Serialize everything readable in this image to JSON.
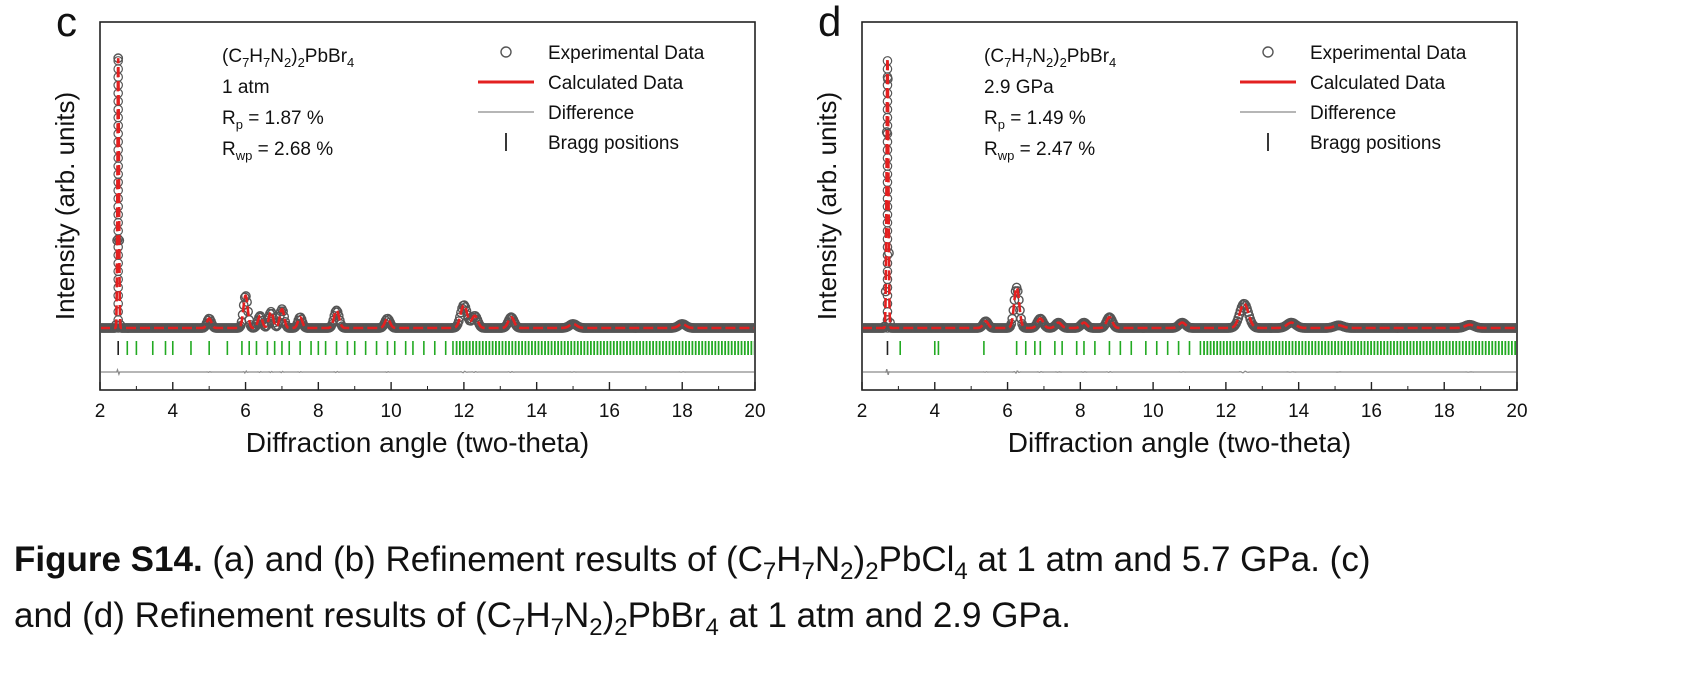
{
  "chart_data": [
    {
      "type": "scatter",
      "panel_label": "c",
      "xlabel": "Diffraction angle (two-theta)",
      "ylabel": "Intensity (arb. units)",
      "xlim": [
        2,
        20
      ],
      "xticks": [
        2,
        4,
        6,
        8,
        10,
        12,
        14,
        16,
        18,
        20
      ],
      "xtick_labels": [
        "2",
        "4",
        "6",
        "8",
        "10",
        "12",
        "14",
        "16",
        "18",
        "20"
      ],
      "info": {
        "compound_main": "(C",
        "compound_sub1": "7",
        "compound_mid1": "H",
        "compound_sub2": "7",
        "compound_mid2": "N",
        "compound_sub3": "2",
        "compound_mid3": ")",
        "compound_sub4": "2",
        "compound_mid4": "PbBr",
        "compound_sub5": "4",
        "pressure": "1 atm",
        "rp_main": "R",
        "rp_sub": "p",
        "rp_value": " = 1.87 %",
        "rwp_main": "R",
        "rwp_sub": "wp",
        "rwp_value": " = 2.68 %"
      },
      "legend": {
        "position": "top-right",
        "entries": [
          "Experimental Data",
          "Calculated Data",
          "Difference",
          "Bragg positions"
        ]
      },
      "colors": {
        "experimental": "#555555",
        "calculated": "#e32020",
        "difference": "#8a8a8a",
        "bragg": "#22aa22"
      },
      "baseline": 0.06,
      "peaks": [
        {
          "x": 2.5,
          "height": 1.0,
          "width": 0.02
        },
        {
          "x": 5.0,
          "height": 0.035,
          "width": 0.06
        },
        {
          "x": 6.0,
          "height": 0.12,
          "width": 0.06
        },
        {
          "x": 6.4,
          "height": 0.045,
          "width": 0.06
        },
        {
          "x": 6.7,
          "height": 0.06,
          "width": 0.06
        },
        {
          "x": 7.0,
          "height": 0.07,
          "width": 0.06
        },
        {
          "x": 7.5,
          "height": 0.04,
          "width": 0.06
        },
        {
          "x": 8.5,
          "height": 0.065,
          "width": 0.07
        },
        {
          "x": 9.9,
          "height": 0.035,
          "width": 0.07
        },
        {
          "x": 12.0,
          "height": 0.085,
          "width": 0.09
        },
        {
          "x": 12.3,
          "height": 0.045,
          "width": 0.08
        },
        {
          "x": 13.3,
          "height": 0.04,
          "width": 0.08
        },
        {
          "x": 15.0,
          "height": 0.015,
          "width": 0.1
        },
        {
          "x": 18.0,
          "height": 0.015,
          "width": 0.1
        }
      ],
      "bragg_positions": [
        2.5,
        2.75,
        3.0,
        3.45,
        3.8,
        4.0,
        4.5,
        5.0,
        5.5,
        5.9,
        6.1,
        6.3,
        6.6,
        6.8,
        7.0,
        7.2,
        7.5,
        7.8,
        8.0,
        8.2,
        8.5,
        8.8,
        9.0,
        9.3,
        9.6,
        9.9,
        10.1,
        10.4,
        10.6,
        10.9,
        11.2,
        11.5,
        11.7
      ],
      "dense_bragg_range": [
        11.8,
        20.0
      ],
      "dense_bragg_step": 0.09
    },
    {
      "type": "scatter",
      "panel_label": "d",
      "xlabel": "Diffraction angle (two-theta)",
      "ylabel": "Intensity (arb. units)",
      "xlim": [
        2,
        20
      ],
      "xticks": [
        2,
        4,
        6,
        8,
        10,
        12,
        14,
        16,
        18,
        20
      ],
      "xtick_labels": [
        "2",
        "4",
        "6",
        "8",
        "10",
        "12",
        "14",
        "16",
        "18",
        "20"
      ],
      "info": {
        "compound_main": "(C",
        "compound_sub1": "7",
        "compound_mid1": "H",
        "compound_sub2": "7",
        "compound_mid2": "N",
        "compound_sub3": "2",
        "compound_mid3": ")",
        "compound_sub4": "2",
        "compound_mid4": "PbBr",
        "compound_sub5": "4",
        "pressure": "2.9 GPa",
        "rp_main": "R",
        "rp_sub": "p",
        "rp_value": " = 1.49 %",
        "rwp_main": "R",
        "rwp_sub": "wp",
        "rwp_value": " = 2.47 %"
      },
      "legend": {
        "position": "top-right",
        "entries": [
          "Experimental Data",
          "Calculated Data",
          "Difference",
          "Bragg positions"
        ]
      },
      "colors": {
        "experimental": "#555555",
        "calculated": "#e32020",
        "difference": "#8a8a8a",
        "bragg": "#22aa22"
      },
      "baseline": 0.06,
      "peaks": [
        {
          "x": 2.7,
          "height": 1.0,
          "width": 0.025
        },
        {
          "x": 5.4,
          "height": 0.025,
          "width": 0.07
        },
        {
          "x": 6.25,
          "height": 0.15,
          "width": 0.07
        },
        {
          "x": 6.9,
          "height": 0.035,
          "width": 0.08
        },
        {
          "x": 7.4,
          "height": 0.02,
          "width": 0.08
        },
        {
          "x": 8.1,
          "height": 0.02,
          "width": 0.08
        },
        {
          "x": 8.8,
          "height": 0.04,
          "width": 0.08
        },
        {
          "x": 10.8,
          "height": 0.02,
          "width": 0.09
        },
        {
          "x": 12.5,
          "height": 0.09,
          "width": 0.12
        },
        {
          "x": 13.8,
          "height": 0.02,
          "width": 0.12
        },
        {
          "x": 15.1,
          "height": 0.01,
          "width": 0.12
        },
        {
          "x": 18.7,
          "height": 0.012,
          "width": 0.12
        }
      ],
      "bragg_positions": [
        2.7,
        3.05,
        4.0,
        4.1,
        5.35,
        6.25,
        6.5,
        6.75,
        6.9,
        7.3,
        7.5,
        7.9,
        8.1,
        8.4,
        8.8,
        9.1,
        9.4,
        9.8,
        10.1,
        10.4,
        10.7,
        11.0,
        11.3
      ],
      "dense_bragg_range": [
        11.4,
        20.0
      ],
      "dense_bragg_step": 0.09
    }
  ],
  "caption": {
    "label": "Figure S14.",
    "p1": " (a) and (b) Refinement results of (C",
    "s1": "7",
    "p2": "H",
    "s2": "7",
    "p3": "N",
    "s3": "2",
    "p4": ")",
    "s4": "2",
    "p5": "PbCl",
    "s5": "4",
    "p6": " at 1 atm and 5.7 GPa. (c)",
    "p7": "and (d) Refinement results of (C",
    "s6": "7",
    "p8": "H",
    "s7": "7",
    "p9": "N",
    "s8": "2",
    "p10": ")",
    "s9": "2",
    "p11": "PbBr",
    "s10": "4",
    "p12": " at 1 atm and 2.9 GPa."
  }
}
